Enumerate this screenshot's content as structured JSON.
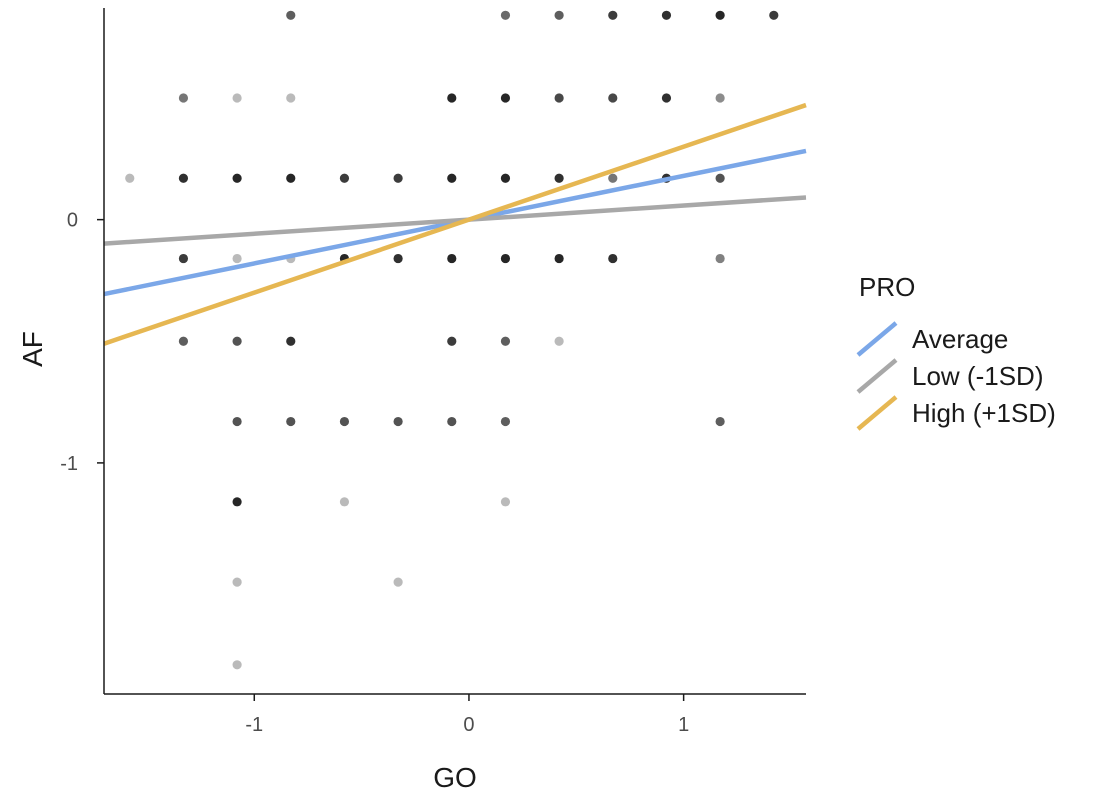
{
  "chart_data": {
    "type": "scatter",
    "xlabel": "GO",
    "ylabel": "AF",
    "xlim": [
      -1.7,
      1.57
    ],
    "ylim": [
      -1.95,
      0.87
    ],
    "x_ticks": [
      {
        "value": -1,
        "label": "-1"
      },
      {
        "value": 0,
        "label": "0"
      },
      {
        "value": 1,
        "label": "1"
      }
    ],
    "y_ticks": [
      {
        "value": -1,
        "label": "-1"
      },
      {
        "value": 0,
        "label": "0"
      }
    ],
    "grid": false,
    "legend": {
      "title": "PRO",
      "placement": "right",
      "entries": [
        {
          "label": "Average",
          "color": "#7BA7E8"
        },
        {
          "label": "Low (-1SD)",
          "color": "#A8A8A8"
        },
        {
          "label": "High (+1SD)",
          "color": "#E6B752"
        }
      ]
    },
    "lines": [
      {
        "name": "Average",
        "color": "#7BA7E8",
        "intercept": 0,
        "slope": 0.18
      },
      {
        "name": "Low (-1SD)",
        "color": "#A8A8A8",
        "intercept": 0,
        "slope": 0.058
      },
      {
        "name": "High (+1SD)",
        "color": "#E6B752",
        "intercept": 0,
        "slope": 0.3
      }
    ],
    "points": [
      {
        "x": -0.83,
        "y": 0.84,
        "alpha": 0.7
      },
      {
        "x": 0.17,
        "y": 0.84,
        "alpha": 0.65
      },
      {
        "x": 0.42,
        "y": 0.84,
        "alpha": 0.7
      },
      {
        "x": 0.67,
        "y": 0.84,
        "alpha": 0.85
      },
      {
        "x": 0.92,
        "y": 0.84,
        "alpha": 0.9
      },
      {
        "x": 1.17,
        "y": 0.84,
        "alpha": 0.95
      },
      {
        "x": 1.42,
        "y": 0.84,
        "alpha": 0.85
      },
      {
        "x": -1.33,
        "y": 0.5,
        "alpha": 0.6
      },
      {
        "x": -1.08,
        "y": 0.5,
        "alpha": 0.3
      },
      {
        "x": -0.83,
        "y": 0.5,
        "alpha": 0.3
      },
      {
        "x": -0.08,
        "y": 0.5,
        "alpha": 0.95
      },
      {
        "x": 0.17,
        "y": 0.5,
        "alpha": 0.95
      },
      {
        "x": 0.42,
        "y": 0.5,
        "alpha": 0.8
      },
      {
        "x": 0.67,
        "y": 0.5,
        "alpha": 0.8
      },
      {
        "x": 0.92,
        "y": 0.5,
        "alpha": 0.9
      },
      {
        "x": 1.17,
        "y": 0.5,
        "alpha": 0.5
      },
      {
        "x": -1.58,
        "y": 0.17,
        "alpha": 0.3
      },
      {
        "x": -1.33,
        "y": 0.17,
        "alpha": 0.9
      },
      {
        "x": -1.08,
        "y": 0.17,
        "alpha": 0.95
      },
      {
        "x": -0.83,
        "y": 0.17,
        "alpha": 0.95
      },
      {
        "x": -0.58,
        "y": 0.17,
        "alpha": 0.85
      },
      {
        "x": -0.33,
        "y": 0.17,
        "alpha": 0.85
      },
      {
        "x": -0.08,
        "y": 0.17,
        "alpha": 0.95
      },
      {
        "x": 0.17,
        "y": 0.17,
        "alpha": 0.95
      },
      {
        "x": 0.42,
        "y": 0.17,
        "alpha": 0.9
      },
      {
        "x": 0.67,
        "y": 0.17,
        "alpha": 0.6
      },
      {
        "x": 0.92,
        "y": 0.17,
        "alpha": 0.9
      },
      {
        "x": 1.17,
        "y": 0.17,
        "alpha": 0.75
      },
      {
        "x": -1.33,
        "y": -0.16,
        "alpha": 0.85
      },
      {
        "x": -1.08,
        "y": -0.16,
        "alpha": 0.3
      },
      {
        "x": -0.83,
        "y": -0.16,
        "alpha": 0.3
      },
      {
        "x": -0.58,
        "y": -0.16,
        "alpha": 0.95
      },
      {
        "x": -0.33,
        "y": -0.16,
        "alpha": 0.9
      },
      {
        "x": -0.08,
        "y": -0.16,
        "alpha": 0.95
      },
      {
        "x": 0.17,
        "y": -0.16,
        "alpha": 0.95
      },
      {
        "x": 0.42,
        "y": -0.16,
        "alpha": 0.95
      },
      {
        "x": 0.67,
        "y": -0.16,
        "alpha": 0.9
      },
      {
        "x": 1.17,
        "y": -0.16,
        "alpha": 0.55
      },
      {
        "x": -1.33,
        "y": -0.5,
        "alpha": 0.7
      },
      {
        "x": -1.08,
        "y": -0.5,
        "alpha": 0.75
      },
      {
        "x": -0.83,
        "y": -0.5,
        "alpha": 0.9
      },
      {
        "x": -0.08,
        "y": -0.5,
        "alpha": 0.85
      },
      {
        "x": 0.17,
        "y": -0.5,
        "alpha": 0.7
      },
      {
        "x": 0.42,
        "y": -0.5,
        "alpha": 0.3
      },
      {
        "x": -1.08,
        "y": -0.83,
        "alpha": 0.75
      },
      {
        "x": -0.83,
        "y": -0.83,
        "alpha": 0.75
      },
      {
        "x": -0.58,
        "y": -0.83,
        "alpha": 0.75
      },
      {
        "x": -0.33,
        "y": -0.83,
        "alpha": 0.75
      },
      {
        "x": -0.08,
        "y": -0.83,
        "alpha": 0.75
      },
      {
        "x": 0.17,
        "y": -0.83,
        "alpha": 0.7
      },
      {
        "x": 1.17,
        "y": -0.83,
        "alpha": 0.7
      },
      {
        "x": -1.08,
        "y": -1.16,
        "alpha": 0.95
      },
      {
        "x": -0.58,
        "y": -1.16,
        "alpha": 0.3
      },
      {
        "x": 0.17,
        "y": -1.16,
        "alpha": 0.3
      },
      {
        "x": -1.08,
        "y": -1.49,
        "alpha": 0.3
      },
      {
        "x": -0.33,
        "y": -1.49,
        "alpha": 0.3
      },
      {
        "x": -1.08,
        "y": -1.83,
        "alpha": 0.3
      }
    ]
  }
}
